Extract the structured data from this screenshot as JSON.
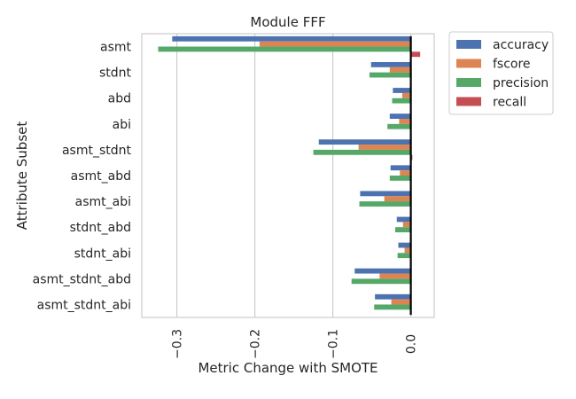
{
  "chart_data": {
    "type": "bar",
    "orientation": "horizontal",
    "title": "Module FFF",
    "xlabel": "Metric Change with SMOTE",
    "ylabel": "Attribute Subset",
    "xlim": [
      -0.345,
      0.03
    ],
    "xticks": [
      -0.3,
      -0.2,
      -0.1,
      0.0
    ],
    "xtick_labels": [
      "−0.3",
      "−0.2",
      "−0.1",
      "0.0"
    ],
    "grid": true,
    "legend_position": "outside-top-right",
    "categories": [
      "asmt",
      "stdnt",
      "abd",
      "abi",
      "asmt_stdnt",
      "asmt_abd",
      "asmt_abi",
      "stdnt_abd",
      "stdnt_abi",
      "asmt_stdnt_abd",
      "asmt_stdnt_abi"
    ],
    "series": [
      {
        "name": "accuracy",
        "color": "#4c72b0",
        "values": [
          -0.306,
          -0.051,
          -0.023,
          -0.027,
          -0.118,
          -0.026,
          -0.065,
          -0.018,
          -0.016,
          -0.072,
          -0.046
        ]
      },
      {
        "name": "fscore",
        "color": "#dd8452",
        "values": [
          -0.194,
          -0.027,
          -0.011,
          -0.015,
          -0.067,
          -0.014,
          -0.034,
          -0.01,
          -0.008,
          -0.04,
          -0.025
        ]
      },
      {
        "name": "precision",
        "color": "#55a868",
        "values": [
          -0.324,
          -0.053,
          -0.024,
          -0.03,
          -0.125,
          -0.027,
          -0.066,
          -0.02,
          -0.017,
          -0.076,
          -0.047
        ]
      },
      {
        "name": "recall",
        "color": "#c44e52",
        "values": [
          0.012,
          0.0,
          0.0,
          0.0,
          0.002,
          0.0,
          0.0,
          0.0,
          0.0,
          0.0,
          0.0
        ]
      }
    ]
  }
}
